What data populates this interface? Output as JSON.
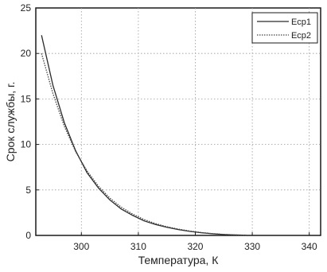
{
  "chart_data": {
    "type": "line",
    "title": "",
    "xlabel": "Температура, К",
    "ylabel": "Срок службы, г.",
    "xlim": [
      292,
      342
    ],
    "ylim": [
      0,
      25
    ],
    "x_ticks": [
      300,
      310,
      320,
      330,
      340
    ],
    "y_ticks": [
      0,
      5,
      10,
      15,
      20,
      25
    ],
    "grid": true,
    "legend_position": "top-right",
    "series": [
      {
        "name": "Еср1",
        "style": "solid",
        "color": "#2b2b2b",
        "x": [
          293,
          295,
          297,
          299,
          301,
          303,
          305,
          307,
          309,
          311,
          313,
          315,
          317,
          319,
          321,
          323,
          325,
          327,
          329
        ],
        "y": [
          22.0,
          16.5,
          12.4,
          9.3,
          6.9,
          5.2,
          3.9,
          2.9,
          2.2,
          1.6,
          1.2,
          0.9,
          0.65,
          0.45,
          0.3,
          0.18,
          0.1,
          0.05,
          0.02
        ]
      },
      {
        "name": "Еср2",
        "style": "dotted",
        "color": "#444444",
        "x": [
          293,
          295,
          297,
          299,
          301,
          303,
          305,
          307,
          309,
          311,
          313,
          315,
          317,
          319,
          321,
          323,
          325,
          327,
          329
        ],
        "y": [
          20.0,
          15.6,
          12.0,
          9.2,
          7.1,
          5.4,
          4.1,
          3.1,
          2.35,
          1.75,
          1.3,
          0.95,
          0.7,
          0.48,
          0.32,
          0.2,
          0.11,
          0.05,
          0.02
        ]
      }
    ]
  }
}
